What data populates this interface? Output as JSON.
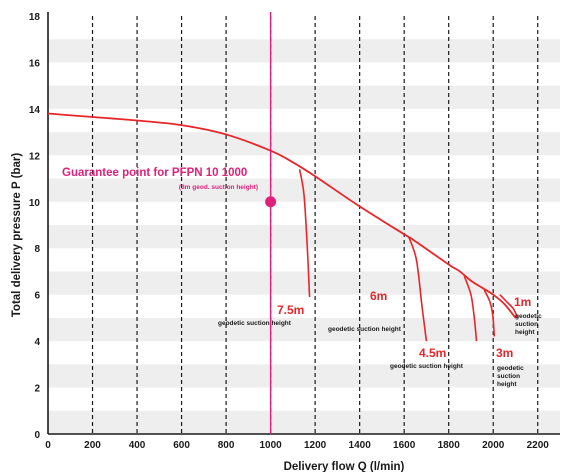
{
  "chart_data": {
    "type": "line",
    "xlabel": "Delivery flow Q (l/min)",
    "ylabel": "Total delivery pressure P (bar)",
    "xlim": [
      0,
      2300
    ],
    "ylim": [
      0,
      18
    ],
    "x_ticks": [
      "0",
      "200",
      "400",
      "600",
      "800",
      "1000",
      "1200",
      "1400",
      "1600",
      "1800",
      "2000",
      "2200"
    ],
    "y_ticks": [
      "0",
      "2",
      "4",
      "6",
      "8",
      "10",
      "12",
      "14",
      "16",
      "18"
    ],
    "grid": true,
    "colors": {
      "curve": "#e8262a",
      "guarantee": "#e0207a",
      "band": "#eeeeee",
      "grid": "#1a1a1a"
    },
    "main_curve": {
      "x": [
        0,
        200,
        400,
        600,
        800,
        1000,
        1100,
        1200,
        1400,
        1600,
        1650,
        1800,
        1850,
        1900,
        1950,
        2000,
        2050,
        2100
      ],
      "y": [
        13.8,
        13.65,
        13.5,
        13.3,
        12.9,
        12.2,
        11.7,
        11.1,
        9.8,
        8.6,
        8.3,
        7.3,
        7.0,
        6.6,
        6.3,
        6.0,
        5.6,
        5.0
      ]
    },
    "suction_curves": [
      {
        "label": "7.5m",
        "note": "geodetic suction height",
        "x": [
          1130,
          1150,
          1165,
          1175
        ],
        "y": [
          11.4,
          10.3,
          8.0,
          5.9
        ]
      },
      {
        "label": "6m",
        "note": "geodetic suction height",
        "x": [
          1620,
          1655,
          1680,
          1700
        ],
        "y": [
          8.5,
          7.5,
          5.5,
          4.0
        ]
      },
      {
        "label": "4.5m",
        "note": "geodetic suction height",
        "x": [
          1870,
          1900,
          1915,
          1925
        ],
        "y": [
          6.8,
          6.0,
          5.0,
          4.0
        ]
      },
      {
        "label": "3m",
        "note": "geodetic suction height",
        "x": [
          1960,
          1985,
          1998,
          2005
        ],
        "y": [
          6.2,
          5.7,
          5.1,
          4.2
        ]
      },
      {
        "label": "1m",
        "note": "geodetic suction height",
        "x": [
          2030,
          2060,
          2090,
          2110
        ],
        "y": [
          6.0,
          5.7,
          5.4,
          5.0
        ]
      }
    ],
    "guarantee": {
      "title": "Guarantee point for PFPN 10 1000",
      "note": "(3m geod. suction height)",
      "x": 1000,
      "y": 10,
      "line_x": 1000
    }
  }
}
